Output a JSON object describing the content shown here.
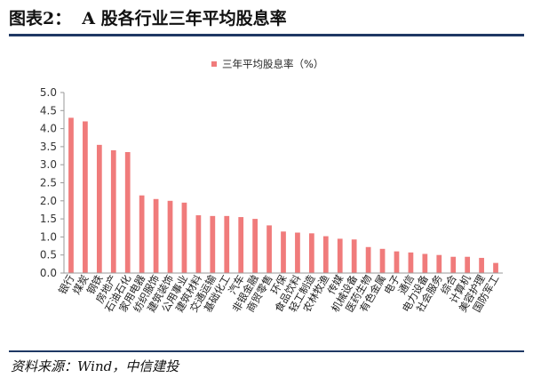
{
  "figure": {
    "number": "图表2：",
    "title": "A 股各行业三年平均股息率",
    "source": "资料来源：Wind，中信建投"
  },
  "chart_data": {
    "type": "bar",
    "title": "",
    "xlabel": "",
    "ylabel": "",
    "legend_position": "top-center",
    "ylim": [
      0,
      5
    ],
    "ytick_step": 0.5,
    "grid": false,
    "colors": {
      "bar": "#f07b7b",
      "axis": "#9a9a9a"
    },
    "categories": [
      "银行",
      "煤炭",
      "钢铁",
      "房地产",
      "石油石化",
      "家用电器",
      "纺织服饰",
      "建筑装饰",
      "公用事业",
      "建筑材料",
      "交通运输",
      "基础化工",
      "汽车",
      "非银金融",
      "商贸零售",
      "环保",
      "食品饮料",
      "轻工制造",
      "农林牧渔",
      "传媒",
      "机械设备",
      "医药生物",
      "有色金属",
      "电子",
      "通信",
      "电力设备",
      "社会服务",
      "综合",
      "计算机",
      "美容护理",
      "国防军工"
    ],
    "series": [
      {
        "name": "三年平均股息率（%）",
        "values": [
          4.3,
          4.2,
          3.55,
          3.4,
          3.35,
          2.15,
          2.05,
          2.0,
          1.95,
          1.6,
          1.58,
          1.58,
          1.55,
          1.5,
          1.32,
          1.15,
          1.12,
          1.1,
          1.02,
          0.95,
          0.93,
          0.72,
          0.67,
          0.6,
          0.57,
          0.53,
          0.5,
          0.45,
          0.45,
          0.42,
          0.28
        ]
      }
    ]
  }
}
